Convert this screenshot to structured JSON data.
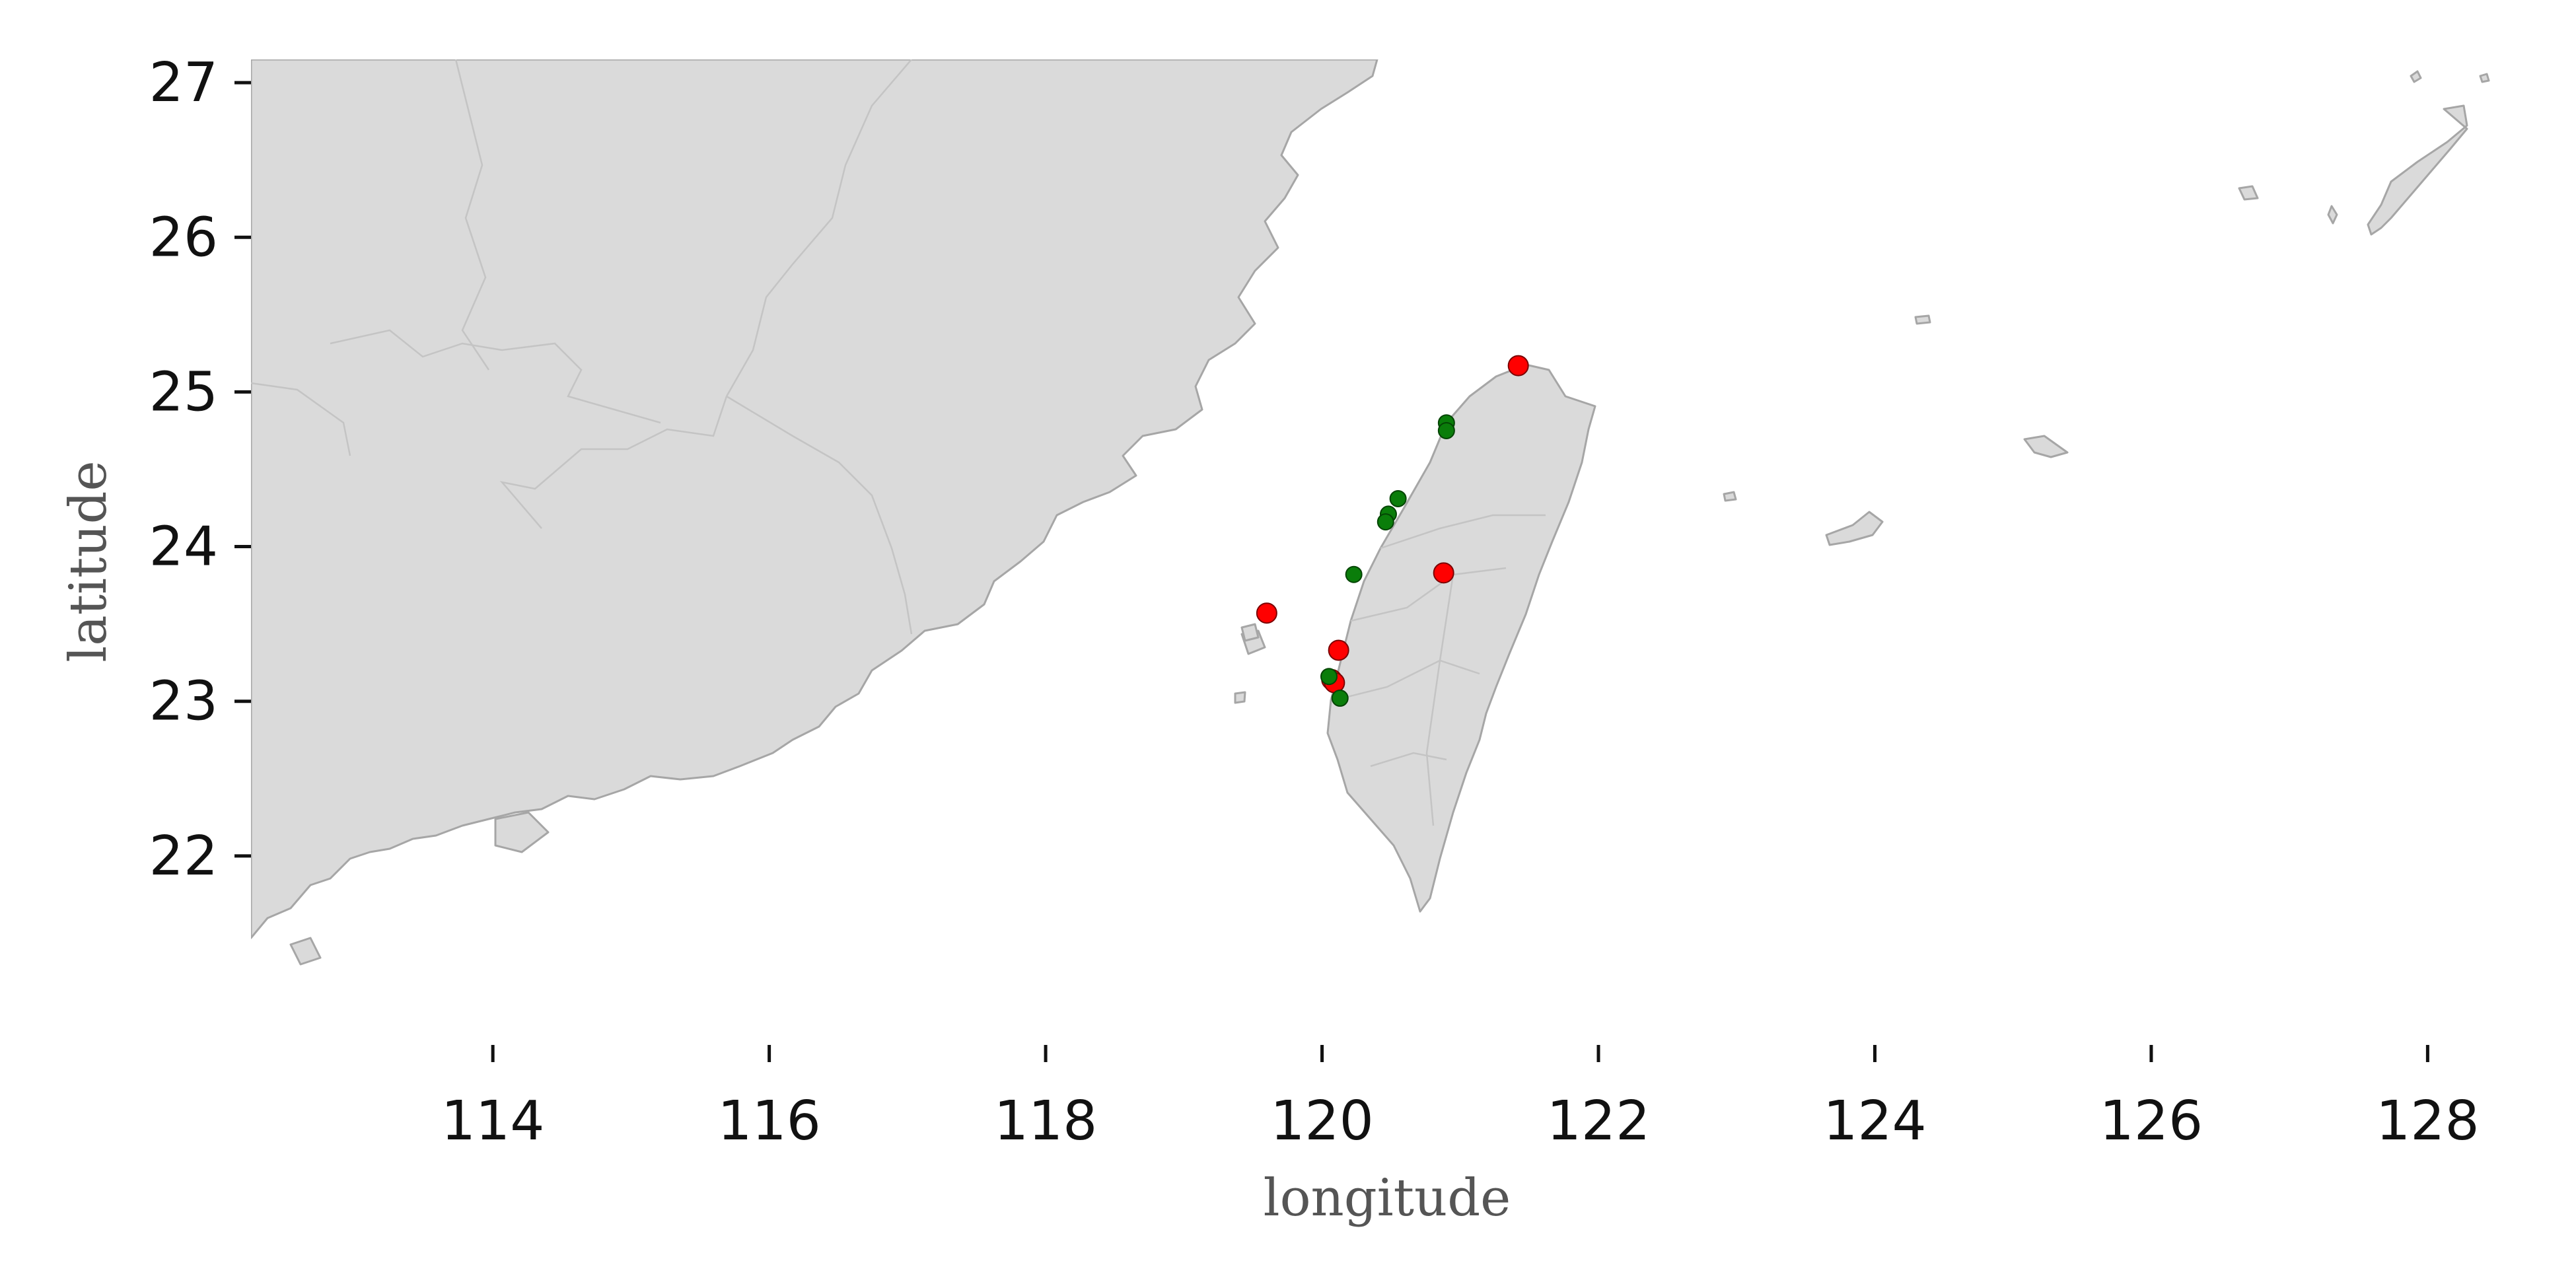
{
  "chart_data": {
    "type": "scatter",
    "xlabel": "longitude",
    "ylabel": "latitude",
    "xlim": [
      112.25,
      128.5
    ],
    "ylim": [
      21.0,
      27.15
    ],
    "xticks": [
      114,
      116,
      118,
      120,
      122,
      124,
      126,
      128
    ],
    "yticks": [
      22,
      23,
      24,
      25,
      26,
      27
    ],
    "grid": false,
    "basemap_fill": "#dadada",
    "basemap_edge": "#a6a6a6",
    "series": [
      {
        "color": "#ff0000",
        "points": [
          {
            "x": 121.42,
            "y": 25.17
          },
          {
            "x": 120.88,
            "y": 23.83
          },
          {
            "x": 119.6,
            "y": 23.57
          },
          {
            "x": 120.12,
            "y": 23.33
          },
          {
            "x": 120.07,
            "y": 23.14
          },
          {
            "x": 120.09,
            "y": 23.12
          }
        ]
      },
      {
        "color": "#0a7d0a",
        "points": [
          {
            "x": 120.9,
            "y": 24.8
          },
          {
            "x": 120.9,
            "y": 24.75
          },
          {
            "x": 120.55,
            "y": 24.31
          },
          {
            "x": 120.48,
            "y": 24.21
          },
          {
            "x": 120.46,
            "y": 24.16
          },
          {
            "x": 120.23,
            "y": 23.82
          },
          {
            "x": 120.05,
            "y": 23.16
          },
          {
            "x": 120.13,
            "y": 23.02
          }
        ]
      }
    ]
  }
}
